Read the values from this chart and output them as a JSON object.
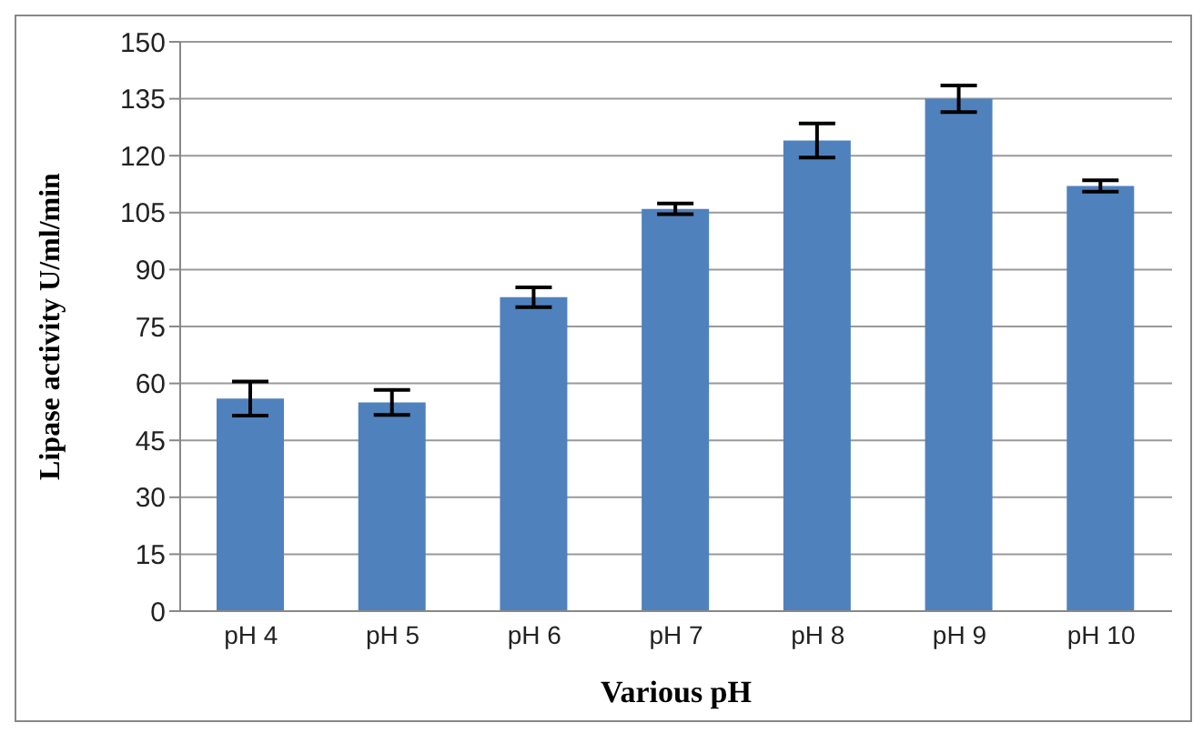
{
  "chart_data": {
    "type": "bar",
    "xlabel": "Various pH",
    "ylabel": "Lipase activity U/ml/min",
    "categories": [
      "pH 4",
      "pH 5",
      "pH 6",
      "pH 7",
      "pH 8",
      "pH 9",
      "pH 10"
    ],
    "values": [
      56,
      55,
      82.7,
      106,
      124,
      135,
      112
    ],
    "errors": [
      4.5,
      3.3,
      2.6,
      1.4,
      4.5,
      3.5,
      1.5
    ],
    "color": "#4f81bd",
    "ylim": [
      0,
      150
    ],
    "yticks": [
      0,
      15,
      30,
      45,
      60,
      75,
      90,
      105,
      120,
      135,
      150
    ],
    "grid": "y",
    "legend": false
  }
}
